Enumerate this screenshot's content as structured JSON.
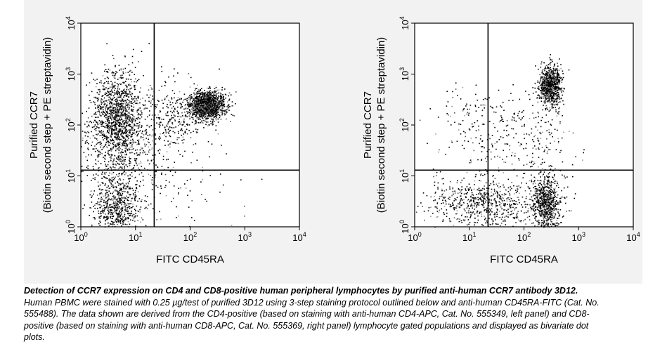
{
  "chart_data": [
    {
      "type": "scatter",
      "panel": "left",
      "xlabel": "FITC CD45RA",
      "ylabel_line1": "Purified CCR7",
      "ylabel_line2": "(Biotin second step + PE streptavidin)",
      "x_scale": "log",
      "y_scale": "log",
      "xlim": [
        1,
        10000
      ],
      "ylim": [
        1,
        10000
      ],
      "x_ticks": [
        {
          "value": 1,
          "base": "10",
          "exp": "0"
        },
        {
          "value": 10,
          "base": "10",
          "exp": "1"
        },
        {
          "value": 100,
          "base": "10",
          "exp": "2"
        },
        {
          "value": 1000,
          "base": "10",
          "exp": "3"
        },
        {
          "value": 10000,
          "base": "10",
          "exp": "4"
        }
      ],
      "y_ticks": [
        {
          "value": 1,
          "base": "10",
          "exp": "0"
        },
        {
          "value": 10,
          "base": "10",
          "exp": "1"
        },
        {
          "value": 100,
          "base": "10",
          "exp": "2"
        },
        {
          "value": 1000,
          "base": "10",
          "exp": "3"
        },
        {
          "value": 10000,
          "base": "10",
          "exp": "4"
        }
      ],
      "quadrant_gates": {
        "x": 22,
        "y": 13
      },
      "clusters": [
        {
          "x": 4.5,
          "y": 150,
          "spread_x_decades": 0.22,
          "spread_y_decades": 0.45,
          "count": 1300
        },
        {
          "x": 200,
          "y": 250,
          "spread_x_decades": 0.16,
          "spread_y_decades": 0.14,
          "count": 1400
        },
        {
          "x": 4.5,
          "y": 2.5,
          "spread_x_decades": 0.22,
          "spread_y_decades": 0.3,
          "count": 650
        },
        {
          "x": 50,
          "y": 150,
          "spread_x_decades": 0.35,
          "spread_y_decades": 0.35,
          "count": 350
        },
        {
          "x": 6,
          "y": 25,
          "spread_x_decades": 0.45,
          "spread_y_decades": 0.4,
          "count": 400
        },
        {
          "x": 50,
          "y": 5,
          "spread_x_decades": 0.6,
          "spread_y_decades": 0.4,
          "count": 80
        }
      ]
    },
    {
      "type": "scatter",
      "panel": "right",
      "xlabel": "FITC CD45RA",
      "ylabel_line1": "Purified CCR7",
      "ylabel_line2": "(Biotin second step + PE streptavidin)",
      "x_scale": "log",
      "y_scale": "log",
      "xlim": [
        1,
        10000
      ],
      "ylim": [
        1,
        10000
      ],
      "x_ticks": [
        {
          "value": 1,
          "base": "10",
          "exp": "0"
        },
        {
          "value": 10,
          "base": "10",
          "exp": "1"
        },
        {
          "value": 100,
          "base": "10",
          "exp": "2"
        },
        {
          "value": 1000,
          "base": "10",
          "exp": "3"
        },
        {
          "value": 10000,
          "base": "10",
          "exp": "4"
        }
      ],
      "y_ticks": [
        {
          "value": 1,
          "base": "10",
          "exp": "0"
        },
        {
          "value": 10,
          "base": "10",
          "exp": "1"
        },
        {
          "value": 100,
          "base": "10",
          "exp": "2"
        },
        {
          "value": 1000,
          "base": "10",
          "exp": "3"
        },
        {
          "value": 10000,
          "base": "10",
          "exp": "4"
        }
      ],
      "quadrant_gates": {
        "x": 22,
        "y": 13
      },
      "clusters": [
        {
          "x": 300,
          "y": 600,
          "spread_x_decades": 0.1,
          "spread_y_decades": 0.2,
          "count": 900
        },
        {
          "x": 250,
          "y": 3,
          "spread_x_decades": 0.13,
          "spread_y_decades": 0.28,
          "count": 750
        },
        {
          "x": 20,
          "y": 3,
          "spread_x_decades": 0.5,
          "spread_y_decades": 0.25,
          "count": 700
        },
        {
          "x": 20,
          "y": 80,
          "spread_x_decades": 0.5,
          "spread_y_decades": 0.5,
          "count": 220
        },
        {
          "x": 200,
          "y": 40,
          "spread_x_decades": 0.3,
          "spread_y_decades": 0.45,
          "count": 150
        }
      ]
    }
  ],
  "caption": {
    "bold": "Detection of CCR7 expression on CD4 and CD8-positive human peripheral lymphocytes by purified anti-human CCR7 antibody 3D12.",
    "text": " Human PBMC were stained with 0.25 µg/test of purified 3D12 using 3-step staining protocol outlined below and anti-human CD45RA-FITC (Cat. No. 555488). The data shown are derived from the CD4-positive (based on staining with anti-human CD4-APC, Cat. No. 555349, left panel) and CD8-positive (based on staining with anti-human CD8-APC, Cat. No. 555369, right panel) lymphocyte gated populations and displayed as bivariate dot plots."
  }
}
